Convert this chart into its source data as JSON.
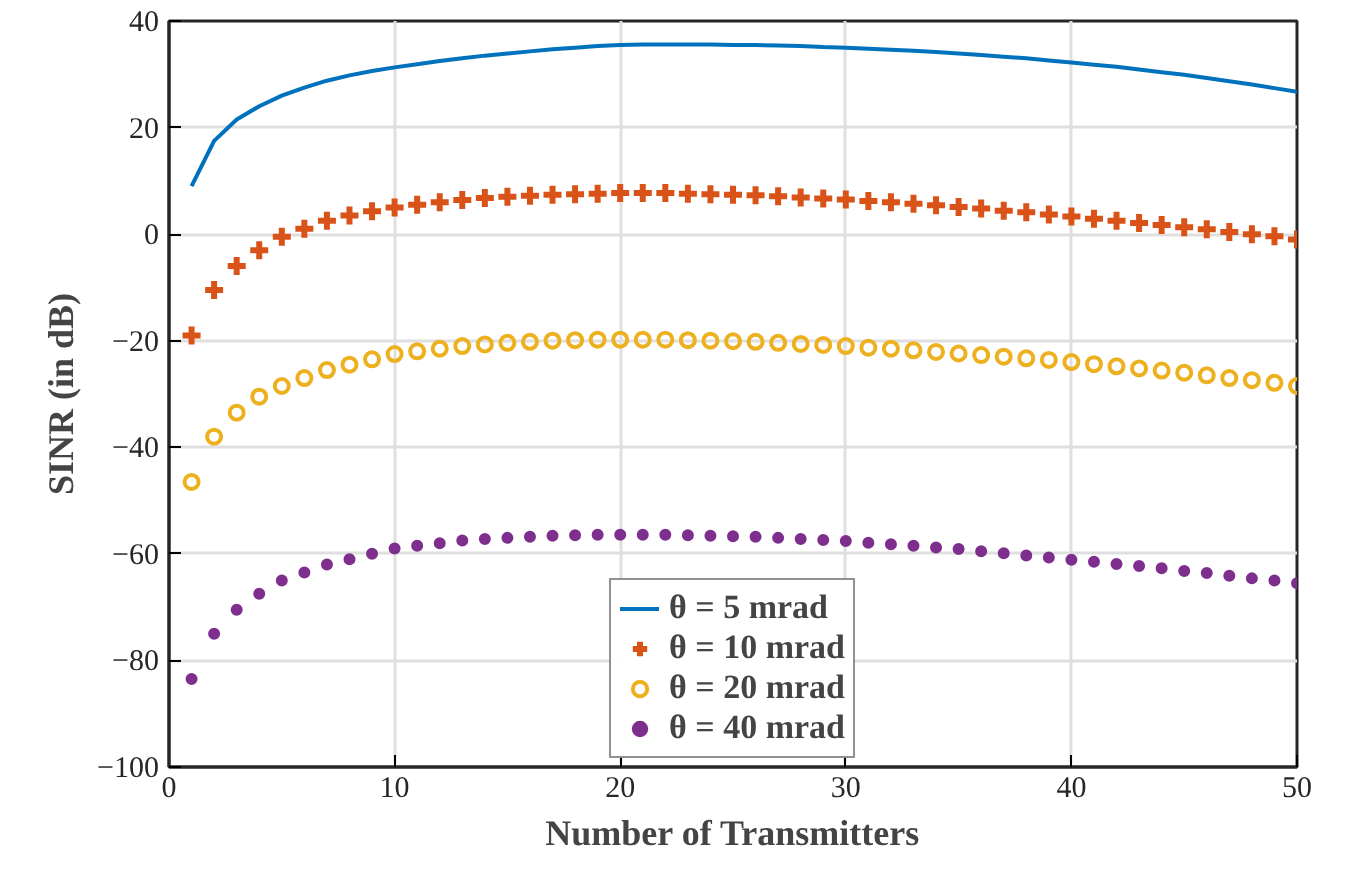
{
  "chart_data": {
    "type": "scatter",
    "xlabel": "Number of Transmitters",
    "ylabel": "SINR (in dB)",
    "x": [
      1,
      2,
      3,
      4,
      5,
      6,
      7,
      8,
      9,
      10,
      11,
      12,
      13,
      14,
      15,
      16,
      17,
      18,
      19,
      20,
      21,
      22,
      23,
      24,
      25,
      26,
      27,
      28,
      29,
      30,
      31,
      32,
      33,
      34,
      35,
      36,
      37,
      38,
      39,
      40,
      41,
      42,
      43,
      44,
      45,
      46,
      47,
      48,
      49,
      50
    ],
    "xlim": [
      0,
      50
    ],
    "xticks": [
      0,
      10,
      20,
      30,
      40,
      50
    ],
    "ylim": [
      -100,
      40
    ],
    "yticks": [
      -100,
      -80,
      -60,
      -40,
      -20,
      0,
      20,
      40
    ],
    "grid": true,
    "legend": "bottom",
    "series": [
      {
        "name": "θ = 5 mrad",
        "type": "line",
        "color": "#0072bd",
        "values": [
          9,
          17.5,
          21.5,
          24,
          26,
          27.5,
          28.8,
          29.8,
          30.6,
          31.3,
          31.9,
          32.5,
          33,
          33.5,
          33.9,
          34.3,
          34.7,
          35,
          35.3,
          35.5,
          35.6,
          35.6,
          35.6,
          35.6,
          35.5,
          35.5,
          35.4,
          35.3,
          35.1,
          35,
          34.8,
          34.6,
          34.4,
          34.2,
          33.9,
          33.6,
          33.3,
          33,
          32.6,
          32.2,
          31.8,
          31.4,
          30.9,
          30.4,
          29.9,
          29.3,
          28.7,
          28.1,
          27.4,
          26.7
        ]
      },
      {
        "name": "θ = 10 mrad",
        "marker": "cross",
        "color": "#d95319",
        "values": [
          -19,
          -10.5,
          -6,
          -3,
          -0.5,
          1,
          2.5,
          3.5,
          4.3,
          5,
          5.5,
          6,
          6.4,
          6.8,
          7,
          7.2,
          7.4,
          7.5,
          7.6,
          7.7,
          7.7,
          7.7,
          7.6,
          7.5,
          7.4,
          7.3,
          7.1,
          6.9,
          6.7,
          6.5,
          6.2,
          6,
          5.7,
          5.4,
          5.1,
          4.8,
          4.4,
          4.1,
          3.7,
          3.3,
          2.9,
          2.5,
          2.1,
          1.7,
          1.3,
          0.9,
          0.4,
          0,
          -0.4,
          -1
        ]
      },
      {
        "name": "θ = 20 mrad",
        "marker": "circle",
        "color": "#edb120",
        "values": [
          -46.5,
          -38,
          -33.5,
          -30.5,
          -28.5,
          -27,
          -25.5,
          -24.5,
          -23.5,
          -22.5,
          -22,
          -21.5,
          -21,
          -20.7,
          -20.4,
          -20.2,
          -20,
          -19.9,
          -19.8,
          -19.8,
          -19.8,
          -19.8,
          -19.9,
          -20,
          -20.1,
          -20.2,
          -20.4,
          -20.6,
          -20.8,
          -21,
          -21.3,
          -21.5,
          -21.8,
          -22.1,
          -22.4,
          -22.7,
          -23,
          -23.3,
          -23.6,
          -24,
          -24.4,
          -24.8,
          -25.2,
          -25.6,
          -26,
          -26.5,
          -27,
          -27.4,
          -27.9,
          -28.5
        ]
      },
      {
        "name": "θ = 40 mrad",
        "marker": "dot",
        "color": "#7e2f8e",
        "values": [
          -83.5,
          -75,
          -70.5,
          -67.5,
          -65,
          -63.5,
          -62,
          -61,
          -60,
          -59,
          -58.5,
          -58,
          -57.5,
          -57.2,
          -57,
          -56.8,
          -56.6,
          -56.5,
          -56.4,
          -56.4,
          -56.4,
          -56.4,
          -56.5,
          -56.6,
          -56.7,
          -56.8,
          -57,
          -57.2,
          -57.4,
          -57.6,
          -57.9,
          -58.2,
          -58.5,
          -58.8,
          -59.1,
          -59.5,
          -59.9,
          -60.3,
          -60.7,
          -61.1,
          -61.5,
          -61.9,
          -62.3,
          -62.7,
          -63.2,
          -63.6,
          -64.1,
          -64.6,
          -65,
          -65.5
        ]
      }
    ]
  }
}
